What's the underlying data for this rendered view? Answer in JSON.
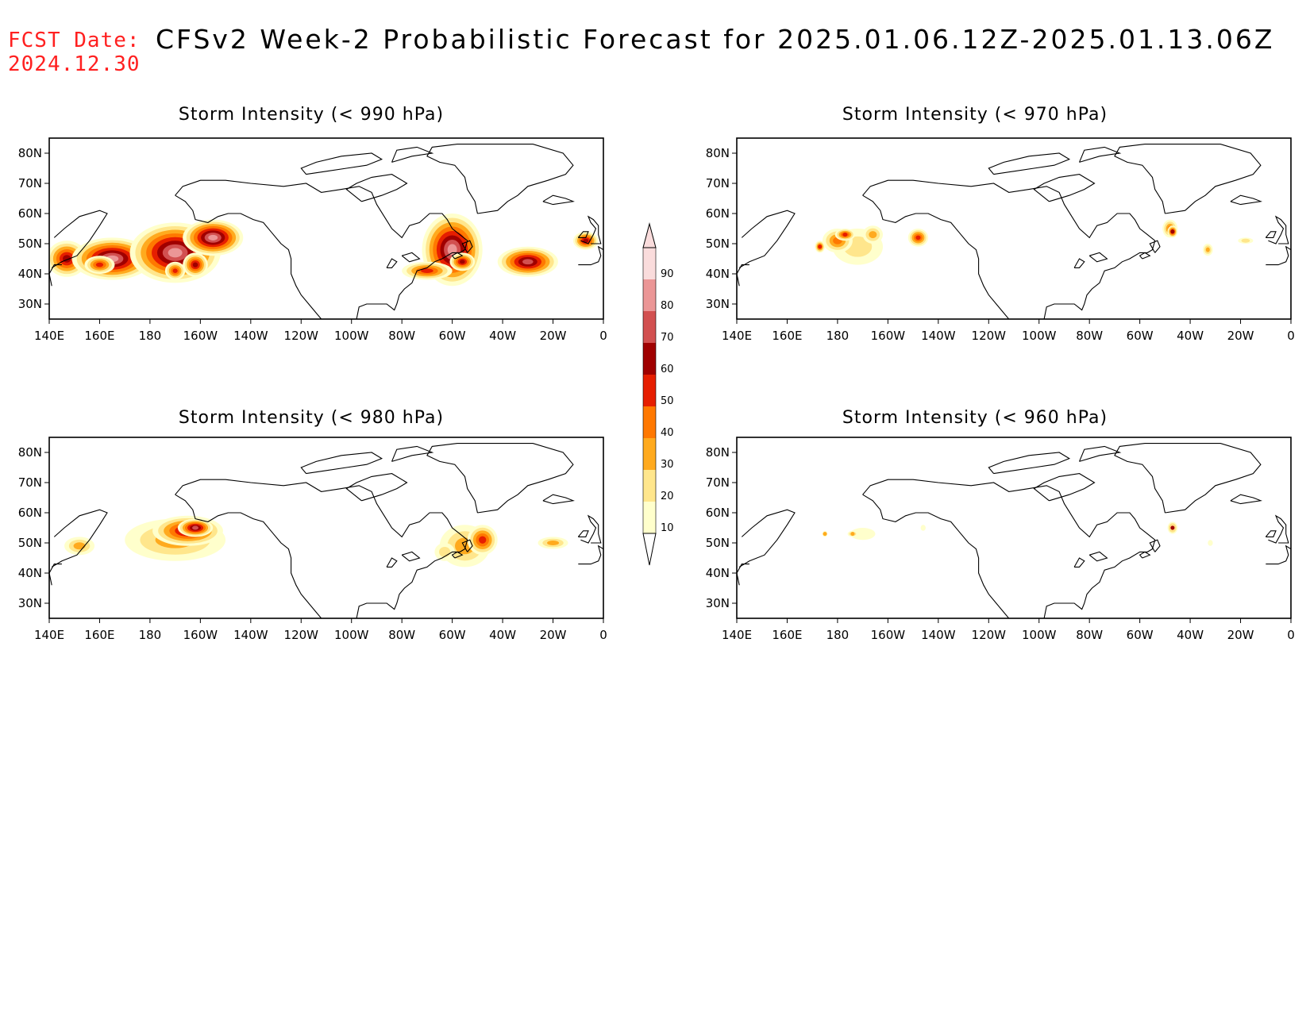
{
  "header": {
    "fcst_label": "FCST Date:",
    "fcst_date": "2024.12.30",
    "title": "CFSv2 Week-2 Probabilistic Forecast for 2025.01.06.12Z-2025.01.13.06Z"
  },
  "colors": {
    "header_red": "#ff2020",
    "ramp": [
      "#ffffcc",
      "#ffe68c",
      "#ffaa1e",
      "#ff7800",
      "#e61e00",
      "#a00000",
      "#d25050",
      "#eb9696",
      "#fadcdc"
    ]
  },
  "axes": {
    "lon_ticks": [
      "140E",
      "160E",
      "180",
      "160W",
      "140W",
      "120W",
      "100W",
      "80W",
      "60W",
      "40W",
      "20W",
      "0"
    ],
    "lat_ticks": [
      "80N",
      "70N",
      "60N",
      "50N",
      "40N",
      "30N"
    ],
    "lon_range": [
      140,
      360
    ],
    "lat_range": [
      25,
      85
    ]
  },
  "colorbar": {
    "levels": [
      "10",
      "20",
      "30",
      "40",
      "50",
      "60",
      "70",
      "80",
      "90"
    ]
  },
  "panels": [
    {
      "id": "p990",
      "title": "Storm Intensity (< 990 hPa)",
      "blobs": [
        {
          "lon": 147,
          "lat": 45,
          "rx": 8,
          "ry": 6,
          "lvl": 6
        },
        {
          "lon": 165,
          "lat": 45,
          "rx": 16,
          "ry": 7,
          "lvl": 8
        },
        {
          "lon": 190,
          "lat": 47,
          "rx": 18,
          "ry": 10,
          "lvl": 8
        },
        {
          "lon": 205,
          "lat": 52,
          "rx": 12,
          "ry": 6,
          "lvl": 8
        },
        {
          "lon": 160,
          "lat": 43,
          "rx": 6,
          "ry": 3,
          "lvl": 5
        },
        {
          "lon": 190,
          "lat": 41,
          "rx": 4,
          "ry": 3,
          "lvl": 5
        },
        {
          "lon": 198,
          "lat": 43,
          "rx": 5,
          "ry": 4,
          "lvl": 6
        },
        {
          "lon": 300,
          "lat": 48,
          "rx": 12,
          "ry": 12,
          "lvl": 8
        },
        {
          "lon": 290,
          "lat": 41,
          "rx": 10,
          "ry": 3,
          "lvl": 5
        },
        {
          "lon": 304,
          "lat": 44,
          "rx": 5,
          "ry": 3,
          "lvl": 6
        },
        {
          "lon": 330,
          "lat": 44,
          "rx": 12,
          "ry": 5,
          "lvl": 7
        },
        {
          "lon": 353,
          "lat": 51,
          "rx": 5,
          "ry": 3,
          "lvl": 6
        }
      ]
    },
    {
      "id": "p970",
      "title": "Storm Intensity (< 970 hPa)",
      "blobs": [
        {
          "lon": 188,
          "lat": 49,
          "rx": 10,
          "ry": 6,
          "lvl": 2
        },
        {
          "lon": 180,
          "lat": 51,
          "rx": 6,
          "ry": 4,
          "lvl": 4
        },
        {
          "lon": 183,
          "lat": 53,
          "rx": 4,
          "ry": 2,
          "lvl": 5
        },
        {
          "lon": 173,
          "lat": 49,
          "rx": 2,
          "ry": 2,
          "lvl": 5
        },
        {
          "lon": 194,
          "lat": 53,
          "rx": 4,
          "ry": 3,
          "lvl": 3
        },
        {
          "lon": 212,
          "lat": 52,
          "rx": 4,
          "ry": 3,
          "lvl": 5
        },
        {
          "lon": 312,
          "lat": 55,
          "rx": 3,
          "ry": 3,
          "lvl": 4
        },
        {
          "lon": 313,
          "lat": 54,
          "rx": 2,
          "ry": 2,
          "lvl": 6
        },
        {
          "lon": 327,
          "lat": 48,
          "rx": 2,
          "ry": 2,
          "lvl": 3
        },
        {
          "lon": 342,
          "lat": 51,
          "rx": 3,
          "ry": 1,
          "lvl": 2
        }
      ]
    },
    {
      "id": "p980",
      "title": "Storm Intensity (< 980 hPa)",
      "blobs": [
        {
          "lon": 190,
          "lat": 51,
          "rx": 20,
          "ry": 7,
          "lvl": 3
        },
        {
          "lon": 195,
          "lat": 54,
          "rx": 14,
          "ry": 5,
          "lvl": 6
        },
        {
          "lon": 198,
          "lat": 55,
          "rx": 7,
          "ry": 3,
          "lvl": 7
        },
        {
          "lon": 152,
          "lat": 49,
          "rx": 6,
          "ry": 3,
          "lvl": 3
        },
        {
          "lon": 305,
          "lat": 49,
          "rx": 10,
          "ry": 7,
          "lvl": 3
        },
        {
          "lon": 312,
          "lat": 51,
          "rx": 6,
          "ry": 5,
          "lvl": 5
        },
        {
          "lon": 340,
          "lat": 50,
          "rx": 6,
          "ry": 2,
          "lvl": 3
        },
        {
          "lon": 297,
          "lat": 47,
          "rx": 4,
          "ry": 3,
          "lvl": 2
        }
      ]
    },
    {
      "id": "p960",
      "title": "Storm Intensity (< 960 hPa)",
      "blobs": [
        {
          "lon": 190,
          "lat": 53,
          "rx": 5,
          "ry": 2,
          "lvl": 1
        },
        {
          "lon": 186,
          "lat": 53,
          "rx": 2,
          "ry": 1,
          "lvl": 3
        },
        {
          "lon": 175,
          "lat": 53,
          "rx": 1,
          "ry": 1,
          "lvl": 3
        },
        {
          "lon": 214,
          "lat": 55,
          "rx": 1,
          "ry": 1,
          "lvl": 1
        },
        {
          "lon": 313,
          "lat": 55,
          "rx": 2,
          "ry": 2,
          "lvl": 4
        },
        {
          "lon": 313,
          "lat": 55,
          "rx": 1,
          "ry": 1,
          "lvl": 6
        },
        {
          "lon": 328,
          "lat": 50,
          "rx": 1,
          "ry": 1,
          "lvl": 1
        }
      ]
    }
  ]
}
